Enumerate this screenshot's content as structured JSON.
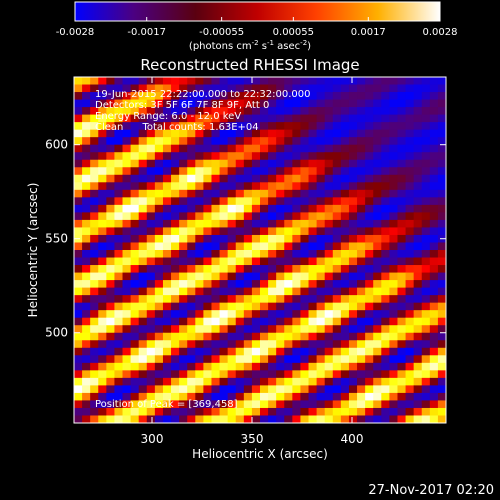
{
  "chart_data": {
    "type": "heatmap",
    "title": "Reconstructed RHESSI Image",
    "xlabel": "Heliocentric X (arcsec)",
    "ylabel": "Heliocentric Y (arcsec)",
    "xlim": [
      261,
      447
    ],
    "ylim": [
      452,
      636
    ],
    "x_ticks": [
      "300",
      "350",
      "400"
    ],
    "y_ticks": [
      "500",
      "550",
      "600"
    ],
    "x_tick_values": [
      300,
      350,
      400
    ],
    "y_tick_values": [
      500,
      550,
      600
    ],
    "colorbar": {
      "ticks": [
        "-0.0028",
        "-0.0017",
        "-0.00055",
        "0.00055",
        "0.0017",
        "0.0028"
      ],
      "tick_values": [
        -0.0028,
        -0.0017,
        -0.00055,
        0.00055,
        0.0017,
        0.0028
      ],
      "range": [
        -0.0028,
        0.0028
      ],
      "units": "(photons cm",
      "units_exp1": "-2",
      "units_mid": " s",
      "units_exp2": "-1",
      "units_end": " asec",
      "units_exp3": "-2",
      "units_close": ")",
      "colors": [
        "#0000ff",
        "#4b0082",
        "#800000",
        "#ff0000",
        "#ffa500",
        "#ffff00",
        "#ffffff"
      ]
    },
    "annotations": [
      "19-Jun-2015 22:22:00.000 to 22:32:00.000",
      "Detectors: 3F 5F 6F 7F 8F 9F, Att 0",
      "Energy Range: 6.0 - 12.0 keV",
      "Clean      Total counts: 1.63E+04"
    ],
    "peak_label": "Position of Peak = [369,458]",
    "peak_position": [
      369,
      458
    ],
    "pattern_note": "diagonal striped fringes oriented from lower-left to upper-right, negative (blue) region toward upper-right",
    "value_min": -0.0028,
    "value_max": 0.0028
  },
  "footer": {
    "timestamp": "27-Nov-2017 02:20"
  }
}
